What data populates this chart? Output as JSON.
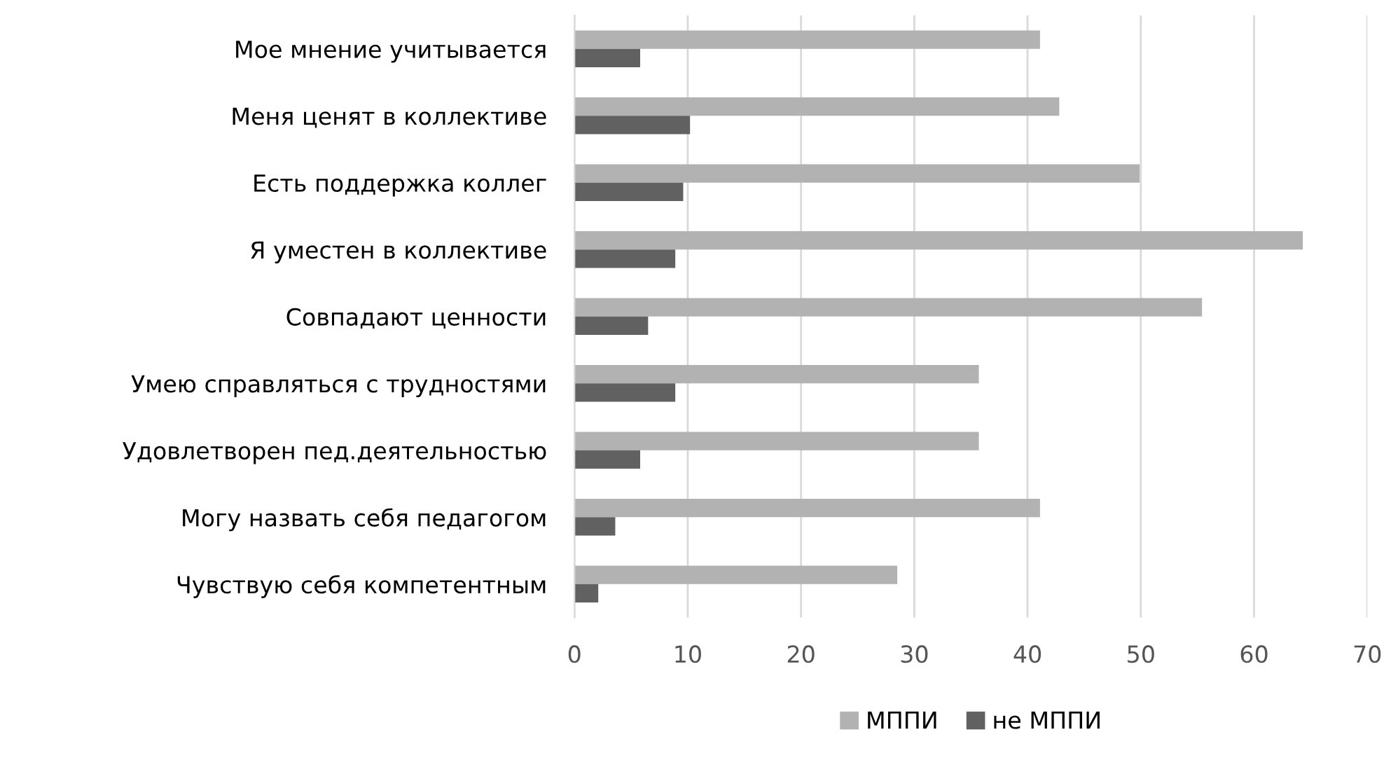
{
  "chart_data": {
    "type": "bar",
    "orientation": "horizontal",
    "categories": [
      "Мое мнение учитывается",
      "Меня ценят в коллективе",
      "Есть поддержка коллег",
      "Я уместен в коллективе",
      "Совпадают ценности",
      "Умею справляться с трудностями",
      "Удовлетворен пед.деятельностью",
      "Могу назвать себя педагогом",
      "Чувствую себя компетентным"
    ],
    "series": [
      {
        "name": "МППИ",
        "color": "#b2b2b2",
        "values": [
          41.1,
          42.8,
          49.9,
          64.3,
          55.4,
          35.7,
          35.7,
          41.1,
          28.5
        ]
      },
      {
        "name": "не МППИ",
        "color": "#616161",
        "values": [
          5.8,
          10.2,
          9.6,
          8.9,
          6.5,
          8.9,
          5.8,
          3.6,
          2.1
        ]
      }
    ],
    "xlim": [
      0,
      70
    ],
    "xticks": [
      0,
      10,
      20,
      30,
      40,
      50,
      60,
      70
    ],
    "grid": "x",
    "legend": "bottom"
  }
}
